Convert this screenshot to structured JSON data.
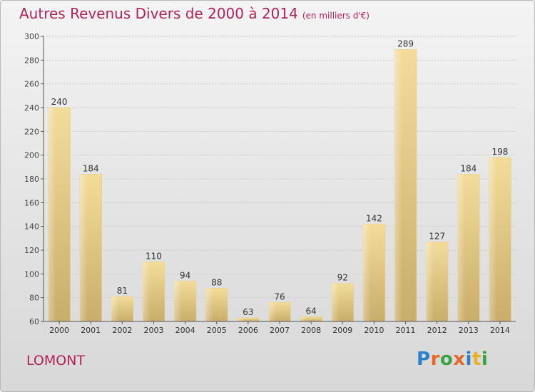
{
  "title": "Autres Revenus Divers de 2000 à 2014",
  "unit": "(en milliers d'€)",
  "commune": "LOMONT",
  "logo": {
    "text": "Proxiti",
    "colors": [
      "#2a7fc9",
      "#e8682a",
      "#3aa346",
      "#e8682a",
      "#2a7fc9",
      "#e7b21e",
      "#3aa346"
    ]
  },
  "colors": {
    "accent": "#b3225a",
    "bar_light": "#f3dc9a",
    "bar_dark": "#cfb36f",
    "axis": "#555555"
  },
  "chart_data": {
    "type": "bar",
    "categories": [
      "2000",
      "2001",
      "2002",
      "2003",
      "2004",
      "2005",
      "2006",
      "2007",
      "2008",
      "2009",
      "2010",
      "2011",
      "2012",
      "2013",
      "2014"
    ],
    "values": [
      240,
      184,
      81,
      110,
      94,
      88,
      63,
      76,
      64,
      92,
      142,
      289,
      127,
      184,
      198
    ],
    "ylim": [
      60,
      300
    ],
    "yticks": [
      60,
      80,
      100,
      120,
      140,
      160,
      180,
      200,
      220,
      240,
      260,
      280,
      300
    ],
    "grid": true,
    "data_labels": true
  }
}
